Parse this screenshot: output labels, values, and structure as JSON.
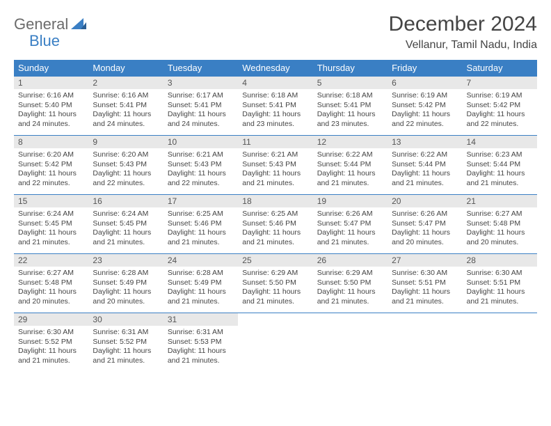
{
  "logo": {
    "general": "General",
    "blue": "Blue"
  },
  "title": "December 2024",
  "location": "Vellanur, Tamil Nadu, India",
  "weekdays": [
    "Sunday",
    "Monday",
    "Tuesday",
    "Wednesday",
    "Thursday",
    "Friday",
    "Saturday"
  ],
  "colors": {
    "header_bg": "#3a7fc4",
    "daynum_bg": "#e8e8e8",
    "border": "#3a7fc4",
    "text": "#444444"
  },
  "days": [
    {
      "n": 1,
      "sr": "6:16 AM",
      "ss": "5:40 PM",
      "dl": "11 hours and 24 minutes."
    },
    {
      "n": 2,
      "sr": "6:16 AM",
      "ss": "5:41 PM",
      "dl": "11 hours and 24 minutes."
    },
    {
      "n": 3,
      "sr": "6:17 AM",
      "ss": "5:41 PM",
      "dl": "11 hours and 24 minutes."
    },
    {
      "n": 4,
      "sr": "6:18 AM",
      "ss": "5:41 PM",
      "dl": "11 hours and 23 minutes."
    },
    {
      "n": 5,
      "sr": "6:18 AM",
      "ss": "5:41 PM",
      "dl": "11 hours and 23 minutes."
    },
    {
      "n": 6,
      "sr": "6:19 AM",
      "ss": "5:42 PM",
      "dl": "11 hours and 22 minutes."
    },
    {
      "n": 7,
      "sr": "6:19 AM",
      "ss": "5:42 PM",
      "dl": "11 hours and 22 minutes."
    },
    {
      "n": 8,
      "sr": "6:20 AM",
      "ss": "5:42 PM",
      "dl": "11 hours and 22 minutes."
    },
    {
      "n": 9,
      "sr": "6:20 AM",
      "ss": "5:43 PM",
      "dl": "11 hours and 22 minutes."
    },
    {
      "n": 10,
      "sr": "6:21 AM",
      "ss": "5:43 PM",
      "dl": "11 hours and 22 minutes."
    },
    {
      "n": 11,
      "sr": "6:21 AM",
      "ss": "5:43 PM",
      "dl": "11 hours and 21 minutes."
    },
    {
      "n": 12,
      "sr": "6:22 AM",
      "ss": "5:44 PM",
      "dl": "11 hours and 21 minutes."
    },
    {
      "n": 13,
      "sr": "6:22 AM",
      "ss": "5:44 PM",
      "dl": "11 hours and 21 minutes."
    },
    {
      "n": 14,
      "sr": "6:23 AM",
      "ss": "5:44 PM",
      "dl": "11 hours and 21 minutes."
    },
    {
      "n": 15,
      "sr": "6:24 AM",
      "ss": "5:45 PM",
      "dl": "11 hours and 21 minutes."
    },
    {
      "n": 16,
      "sr": "6:24 AM",
      "ss": "5:45 PM",
      "dl": "11 hours and 21 minutes."
    },
    {
      "n": 17,
      "sr": "6:25 AM",
      "ss": "5:46 PM",
      "dl": "11 hours and 21 minutes."
    },
    {
      "n": 18,
      "sr": "6:25 AM",
      "ss": "5:46 PM",
      "dl": "11 hours and 21 minutes."
    },
    {
      "n": 19,
      "sr": "6:26 AM",
      "ss": "5:47 PM",
      "dl": "11 hours and 21 minutes."
    },
    {
      "n": 20,
      "sr": "6:26 AM",
      "ss": "5:47 PM",
      "dl": "11 hours and 20 minutes."
    },
    {
      "n": 21,
      "sr": "6:27 AM",
      "ss": "5:48 PM",
      "dl": "11 hours and 20 minutes."
    },
    {
      "n": 22,
      "sr": "6:27 AM",
      "ss": "5:48 PM",
      "dl": "11 hours and 20 minutes."
    },
    {
      "n": 23,
      "sr": "6:28 AM",
      "ss": "5:49 PM",
      "dl": "11 hours and 20 minutes."
    },
    {
      "n": 24,
      "sr": "6:28 AM",
      "ss": "5:49 PM",
      "dl": "11 hours and 21 minutes."
    },
    {
      "n": 25,
      "sr": "6:29 AM",
      "ss": "5:50 PM",
      "dl": "11 hours and 21 minutes."
    },
    {
      "n": 26,
      "sr": "6:29 AM",
      "ss": "5:50 PM",
      "dl": "11 hours and 21 minutes."
    },
    {
      "n": 27,
      "sr": "6:30 AM",
      "ss": "5:51 PM",
      "dl": "11 hours and 21 minutes."
    },
    {
      "n": 28,
      "sr": "6:30 AM",
      "ss": "5:51 PM",
      "dl": "11 hours and 21 minutes."
    },
    {
      "n": 29,
      "sr": "6:30 AM",
      "ss": "5:52 PM",
      "dl": "11 hours and 21 minutes."
    },
    {
      "n": 30,
      "sr": "6:31 AM",
      "ss": "5:52 PM",
      "dl": "11 hours and 21 minutes."
    },
    {
      "n": 31,
      "sr": "6:31 AM",
      "ss": "5:53 PM",
      "dl": "11 hours and 21 minutes."
    }
  ],
  "labels": {
    "sunrise": "Sunrise:",
    "sunset": "Sunset:",
    "daylight": "Daylight:"
  },
  "layout": {
    "columns": 7,
    "rows": 5,
    "first_weekday_index": 0
  }
}
